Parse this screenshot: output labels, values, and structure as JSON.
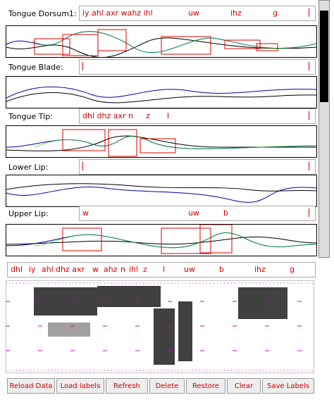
{
  "tiers": [
    {
      "label": "Tongue Dorsum1:",
      "tokens": [
        "iy ahl axr wahz ihl",
        "uw",
        "ihz",
        "g"
      ]
    },
    {
      "label": "Tongue Blade:",
      "tokens": []
    },
    {
      "label": "Tongue Tip:",
      "tokens": [
        "dhl dhz axr n",
        "z",
        "l"
      ]
    },
    {
      "label": "Lower Lip:",
      "tokens": []
    },
    {
      "label": "Upper Lip:",
      "tokens": [
        "w",
        "uw",
        "b"
      ]
    }
  ],
  "phones": [
    "dhl",
    "iy",
    "ahl",
    "dhz axr",
    "w",
    "ahz",
    "n",
    "ihl",
    "z",
    "l",
    "uw",
    "b",
    "ihz",
    "g"
  ],
  "buttons": [
    "Reload Data",
    "Load labels",
    "Refresh",
    "Delete",
    "Restore",
    "Clear",
    "Save Labels"
  ]
}
